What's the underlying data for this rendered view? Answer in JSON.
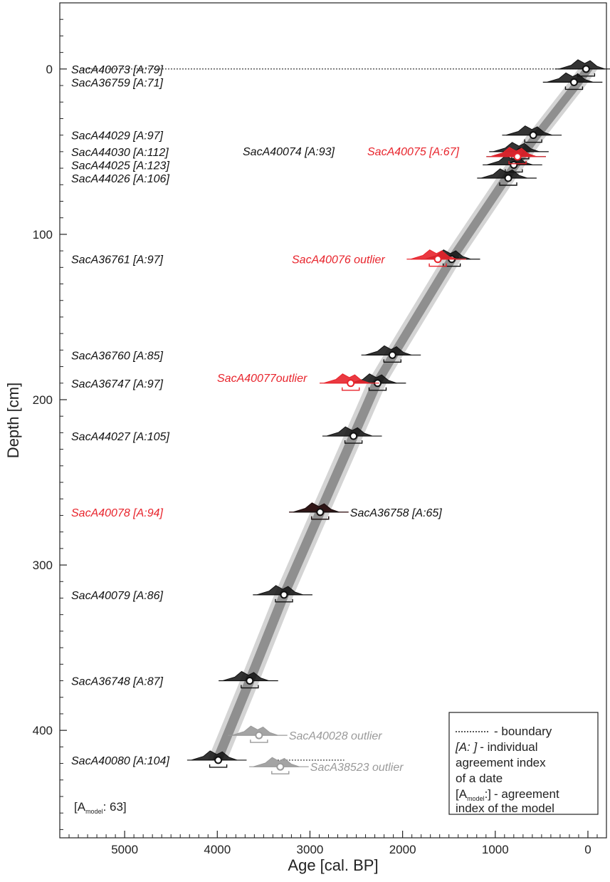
{
  "chart_data": {
    "type": "scatter",
    "title": "",
    "xlabel": "Age [cal. BP]",
    "ylabel": "Depth [cm]",
    "xlim": [
      5700,
      -200
    ],
    "ylim": [
      -40,
      465
    ],
    "x_reversed": true,
    "y_reversed": true,
    "xticks": [
      5000,
      4000,
      3000,
      2000,
      1000,
      0
    ],
    "yticks": [
      0,
      100,
      200,
      300,
      400
    ],
    "grid": false,
    "model_agreement": "[A",
    "model_agreement_sub": "model",
    "model_agreement_value": ": 63]",
    "model_envelope": {
      "series": "age-depth model",
      "points": [
        {
          "depth": 0,
          "age": 0
        },
        {
          "depth": 10,
          "age": 130
        },
        {
          "depth": 43,
          "age": 590
        },
        {
          "depth": 65,
          "age": 870
        },
        {
          "depth": 115,
          "age": 1470
        },
        {
          "depth": 175,
          "age": 2120
        },
        {
          "depth": 190,
          "age": 2280
        },
        {
          "depth": 222,
          "age": 2530
        },
        {
          "depth": 268,
          "age": 2890
        },
        {
          "depth": 318,
          "age": 3280
        },
        {
          "depth": 370,
          "age": 3650
        },
        {
          "depth": 418,
          "age": 4000
        }
      ],
      "inner_halfwidth_years": 55,
      "outer_halfwidth_years": 105
    },
    "boundaries": [
      {
        "depth": 0,
        "age_from": 0,
        "age_to": 5480
      },
      {
        "depth": 114,
        "age_from": 1470,
        "age_to": 1370
      },
      {
        "depth": 190,
        "age_from": 2280,
        "age_to": 2130
      },
      {
        "depth": 418,
        "age_from": 3350,
        "age_to": 2630
      }
    ],
    "dates": [
      {
        "label": "SacA40073 [A:79]",
        "depth": 0,
        "age": 20,
        "color": "#111111",
        "label_side": "left"
      },
      {
        "label": "SacA36759 [A:71]",
        "depth": 8,
        "age": 150,
        "color": "#111111",
        "label_side": "left"
      },
      {
        "label": "SacA44029 [A:97]",
        "depth": 40,
        "age": 590,
        "color": "#111111",
        "label_side": "left"
      },
      {
        "label": "SacA44030 [A:112]",
        "depth": 50,
        "age": 730,
        "color": "#111111",
        "label_side": "left"
      },
      {
        "label": "SacA44025 [A:123]",
        "depth": 58,
        "age": 800,
        "color": "#111111",
        "label_side": "left"
      },
      {
        "label": "SacA44026 [A:106]",
        "depth": 66,
        "age": 860,
        "color": "#111111",
        "label_side": "left"
      },
      {
        "label": "SacA40074 [A:93]",
        "depth": 53,
        "age": 760,
        "color": "#111111",
        "label_side": "mid"
      },
      {
        "label": "SacA40075 [A:67]",
        "depth": 53,
        "age": 760,
        "color": "#e8242c",
        "label_side": "mid"
      },
      {
        "label": "SacA36761 [A:97]",
        "depth": 115,
        "age": 1470,
        "color": "#111111",
        "label_side": "left"
      },
      {
        "label": "SacA40076 outlier",
        "depth": 115,
        "age": 1620,
        "color": "#e8242c",
        "label_side": "mid"
      },
      {
        "label": "SacA36760 [A:85]",
        "depth": 173,
        "age": 2110,
        "color": "#111111",
        "label_side": "left"
      },
      {
        "label": "SacA36747 [A:97]",
        "depth": 190,
        "age": 2270,
        "color": "#111111",
        "label_side": "left"
      },
      {
        "label": "SacA40077outlier",
        "depth": 190,
        "age": 2560,
        "color": "#e8242c",
        "label_side": "mid"
      },
      {
        "label": "SacA44027 [A:105]",
        "depth": 222,
        "age": 2530,
        "color": "#111111",
        "label_side": "left"
      },
      {
        "label": "SacA40078 [A:94]",
        "depth": 268,
        "age": 2890,
        "color": "#e8242c",
        "label_side": "left"
      },
      {
        "label": "SacA36758 [A:65]",
        "depth": 268,
        "age": 2890,
        "color": "#111111",
        "label_side": "right"
      },
      {
        "label": "SacA40079 [A:86]",
        "depth": 318,
        "age": 3280,
        "color": "#111111",
        "label_side": "left"
      },
      {
        "label": "SacA36748 [A:87]",
        "depth": 370,
        "age": 3650,
        "color": "#111111",
        "label_side": "left"
      },
      {
        "label": "SacA40028 outlier",
        "depth": 403,
        "age": 3550,
        "color": "#9a9a9a",
        "label_side": "right"
      },
      {
        "label": "SacA40080 [A:104]",
        "depth": 418,
        "age": 3990,
        "color": "#111111",
        "label_side": "left"
      },
      {
        "label": "SacA38523 outlier",
        "depth": 422,
        "age": 3320,
        "color": "#9a9a9a",
        "label_side": "right"
      }
    ],
    "legend": {
      "placement": "bottom-right",
      "entries": [
        {
          "key": "",
          "text": "- boundary",
          "key_style": "dotted-line"
        },
        {
          "key": "[A: ]",
          "text": "- individual",
          "key_style": "italic"
        },
        {
          "key": "",
          "text": "agreement index",
          "key_style": "none"
        },
        {
          "key": "",
          "text": "of a date",
          "key_style": "none"
        },
        {
          "key": "[A",
          "key_sub": "model",
          "key_tail": ":]",
          "text": "- agreement",
          "key_style": "subscript"
        },
        {
          "key": "",
          "text": "index of the model",
          "key_style": "none"
        }
      ]
    }
  }
}
